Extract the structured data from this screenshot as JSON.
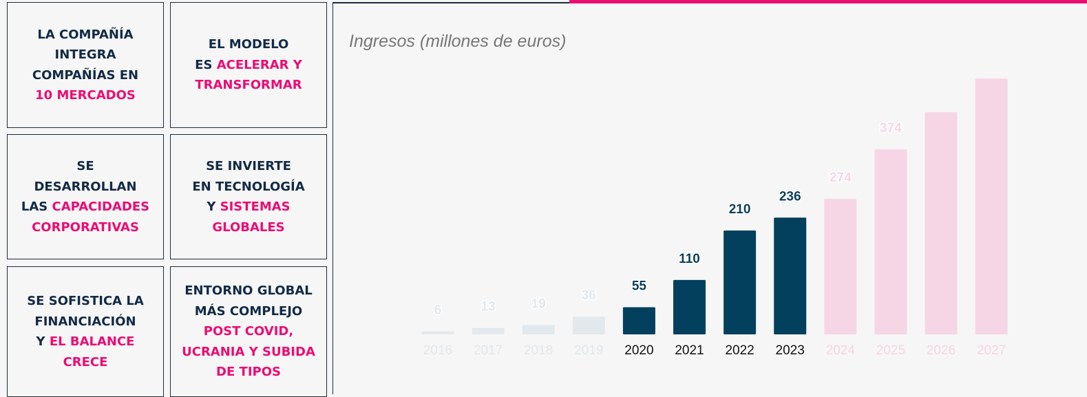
{
  "boxes": [
    {
      "lines": [
        [
          {
            "text": "LA COMPAÑÍA"
          }
        ],
        [
          {
            "text": "INTEGRA"
          }
        ],
        [
          {
            "text": "COMPAÑÍAS EN"
          }
        ],
        [
          {
            "text": "10 MERCADOS",
            "accent": true
          }
        ]
      ]
    },
    {
      "lines": [
        [
          {
            "text": "EL MODELO"
          }
        ],
        [
          {
            "text": "ES "
          },
          {
            "text": "ACELERAR Y",
            "accent": true
          }
        ],
        [
          {
            "text": "TRANSFORMAR",
            "accent": true
          }
        ]
      ]
    },
    {
      "lines": [
        [
          {
            "text": "SE"
          }
        ],
        [
          {
            "text": "DESARROLLAN"
          }
        ],
        [
          {
            "text": "LAS "
          },
          {
            "text": "CAPACIDADES",
            "accent": true
          }
        ],
        [
          {
            "text": "CORPORATIVAS",
            "accent": true
          }
        ]
      ]
    },
    {
      "lines": [
        [
          {
            "text": "SE INVIERTE"
          }
        ],
        [
          {
            "text": "EN TECNOLOGÍA"
          }
        ],
        [
          {
            "text": "Y "
          },
          {
            "text": "SISTEMAS",
            "accent": true
          }
        ],
        [
          {
            "text": "GLOBALES",
            "accent": true
          }
        ]
      ]
    },
    {
      "lines": [
        [
          {
            "text": "SE SOFISTICA LA"
          }
        ],
        [
          {
            "text": "FINANCIACIÓN"
          }
        ],
        [
          {
            "text": "Y "
          },
          {
            "text": "EL BALANCE",
            "accent": true
          }
        ],
        [
          {
            "text": "CRECE",
            "accent": true
          }
        ]
      ]
    },
    {
      "lines": [
        [
          {
            "text": "ENTORNO GLOBAL"
          }
        ],
        [
          {
            "text": "MÁS COMPLEJO"
          }
        ],
        [
          {
            "text": "POST COVID,",
            "accent": true
          }
        ],
        [
          {
            "text": "UCRANIA Y SUBIDA",
            "accent": true
          }
        ],
        [
          {
            "text": "DE TIPOS",
            "accent": true
          }
        ]
      ]
    }
  ],
  "chart_data": {
    "type": "bar",
    "title": "Ingresos (millones de euros)",
    "categories": [
      "2016",
      "2017",
      "2018",
      "2019",
      "2020",
      "2021",
      "2022",
      "2023",
      "2024",
      "2025",
      "2026",
      "2027"
    ],
    "values": [
      6,
      13,
      19,
      36,
      55,
      110,
      210,
      236,
      274,
      374,
      449,
      517
    ],
    "value_labels": [
      "6",
      "13",
      "19",
      "36",
      "55",
      "110",
      "210",
      "236",
      "274",
      "374",
      null,
      null
    ],
    "colors": [
      "#e3e8ec",
      "#e3e8ec",
      "#e3e8ec",
      "#e3e8ec",
      "#03405e",
      "#03405e",
      "#03405e",
      "#03405e",
      "#f6d6e5",
      "#f6d6e5",
      "#f6d6e5",
      "#f6d6e5"
    ],
    "ylim": [
      0,
      520
    ]
  }
}
